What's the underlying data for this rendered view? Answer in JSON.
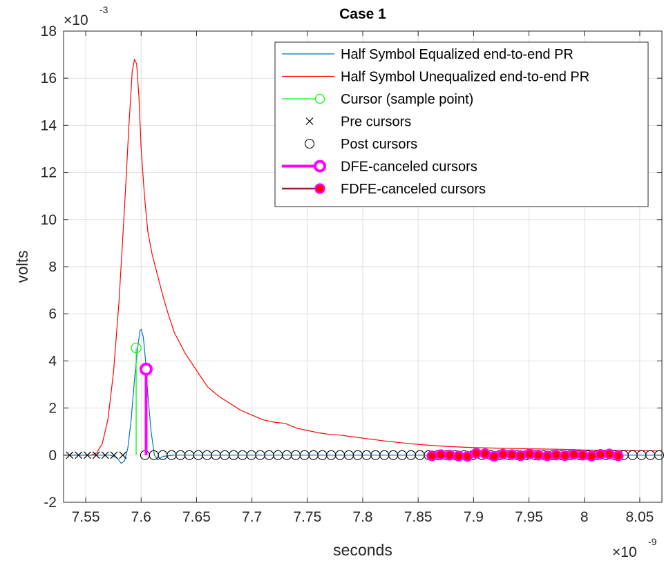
{
  "chart_data": {
    "type": "line",
    "title": "Case 1",
    "xlabel": "seconds",
    "ylabel": "volts",
    "x_multiplier": {
      "base": "×10",
      "exponent": "-9"
    },
    "y_multiplier": {
      "base": "×10",
      "exponent": "-3"
    },
    "xlim": [
      7.53,
      8.07
    ],
    "ylim": [
      -2,
      18
    ],
    "x_ticks": [
      "7.55",
      "7.6",
      "7.65",
      "7.7",
      "7.75",
      "7.8",
      "7.85",
      "7.9",
      "7.95",
      "8",
      "8.05"
    ],
    "x_tick_values": [
      7.55,
      7.6,
      7.65,
      7.7,
      7.75,
      7.8,
      7.85,
      7.9,
      7.95,
      8.0,
      8.05
    ],
    "y_ticks": [
      "-2",
      "0",
      "2",
      "4",
      "6",
      "8",
      "10",
      "12",
      "14",
      "16",
      "18"
    ],
    "y_tick_values": [
      -2,
      0,
      2,
      4,
      6,
      8,
      10,
      12,
      14,
      16,
      18
    ],
    "grid": true,
    "legend_position": "top-right",
    "colors": {
      "equalized": "#0072BD",
      "unequalized": "#FF0000",
      "cursor": "#00FF00",
      "pre": "#000000",
      "post": "#000000",
      "dfe": "#FF00FF",
      "fdfe_line": "#A2142F",
      "fdfe_fill": "#FF0000",
      "fdfe_edge": "#FF00FF"
    },
    "series": [
      {
        "name": "Half Symbol Equalized end-to-end PR",
        "kind": "line",
        "points": [
          [
            7.53,
            0
          ],
          [
            7.56,
            0
          ],
          [
            7.572,
            0
          ],
          [
            7.578,
            -0.1
          ],
          [
            7.582,
            -0.35
          ],
          [
            7.585,
            -0.25
          ],
          [
            7.588,
            0.3
          ],
          [
            7.591,
            1.5
          ],
          [
            7.594,
            3.2
          ],
          [
            7.597,
            4.6
          ],
          [
            7.599,
            5.3
          ],
          [
            7.6,
            5.35
          ],
          [
            7.602,
            5.0
          ],
          [
            7.604,
            4.0
          ],
          [
            7.606,
            2.6
          ],
          [
            7.609,
            1.0
          ],
          [
            7.612,
            0.0
          ],
          [
            7.615,
            -0.2
          ],
          [
            7.62,
            -0.05
          ],
          [
            7.63,
            0
          ],
          [
            7.85,
            0
          ],
          [
            8.07,
            0
          ]
        ]
      },
      {
        "name": "Half Symbol Unequalized end-to-end PR",
        "kind": "line",
        "points": [
          [
            7.53,
            0
          ],
          [
            7.555,
            0
          ],
          [
            7.56,
            0.1
          ],
          [
            7.565,
            0.5
          ],
          [
            7.57,
            1.5
          ],
          [
            7.575,
            3.5
          ],
          [
            7.58,
            6.5
          ],
          [
            7.585,
            10.5
          ],
          [
            7.589,
            14.0
          ],
          [
            7.592,
            16.3
          ],
          [
            7.594,
            16.8
          ],
          [
            7.596,
            16.6
          ],
          [
            7.598,
            15.2
          ],
          [
            7.6,
            13.0
          ],
          [
            7.603,
            11.0
          ],
          [
            7.606,
            9.5
          ],
          [
            7.61,
            8.5
          ],
          [
            7.615,
            7.6
          ],
          [
            7.62,
            6.7
          ],
          [
            7.625,
            5.9
          ],
          [
            7.63,
            5.2
          ],
          [
            7.64,
            4.3
          ],
          [
            7.65,
            3.6
          ],
          [
            7.66,
            2.9
          ],
          [
            7.67,
            2.5
          ],
          [
            7.68,
            2.2
          ],
          [
            7.69,
            1.9
          ],
          [
            7.7,
            1.7
          ],
          [
            7.71,
            1.5
          ],
          [
            7.72,
            1.4
          ],
          [
            7.73,
            1.35
          ],
          [
            7.74,
            1.15
          ],
          [
            7.75,
            1.05
          ],
          [
            7.76,
            0.95
          ],
          [
            7.77,
            0.88
          ],
          [
            7.78,
            0.85
          ],
          [
            7.8,
            0.72
          ],
          [
            7.82,
            0.6
          ],
          [
            7.84,
            0.5
          ],
          [
            7.86,
            0.42
          ],
          [
            7.88,
            0.36
          ],
          [
            7.9,
            0.32
          ],
          [
            7.92,
            0.3
          ],
          [
            7.95,
            0.27
          ],
          [
            7.98,
            0.25
          ],
          [
            8.0,
            0.22
          ],
          [
            8.03,
            0.2
          ],
          [
            8.07,
            0.18
          ]
        ]
      },
      {
        "name": "Cursor (sample point)",
        "kind": "stem",
        "points": [
          [
            7.5955,
            4.55
          ]
        ]
      },
      {
        "name": "Pre cursors",
        "kind": "marker-x",
        "points": [
          [
            7.5355,
            0
          ],
          [
            7.5435,
            0
          ],
          [
            7.5515,
            0
          ],
          [
            7.5595,
            0
          ],
          [
            7.5675,
            0
          ],
          [
            7.5755,
            0
          ],
          [
            7.5835,
            0
          ]
        ]
      },
      {
        "name": "Post cursors",
        "kind": "marker-o",
        "points": [
          [
            7.6035,
            0
          ],
          [
            7.6115,
            0
          ],
          [
            7.6195,
            0
          ],
          [
            7.6275,
            0
          ],
          [
            7.6355,
            0
          ],
          [
            7.6435,
            0
          ],
          [
            7.6515,
            0
          ],
          [
            7.6595,
            0
          ],
          [
            7.6675,
            0
          ],
          [
            7.6755,
            0
          ],
          [
            7.6835,
            0
          ],
          [
            7.6915,
            0
          ],
          [
            7.6995,
            0
          ],
          [
            7.7075,
            0
          ],
          [
            7.7155,
            0
          ],
          [
            7.7235,
            0
          ],
          [
            7.7315,
            0
          ],
          [
            7.7395,
            0
          ],
          [
            7.7475,
            0
          ],
          [
            7.7555,
            0
          ],
          [
            7.7635,
            0
          ],
          [
            7.7715,
            0
          ],
          [
            7.7795,
            0
          ],
          [
            7.7875,
            0
          ],
          [
            7.7955,
            0
          ],
          [
            7.8035,
            0
          ],
          [
            7.8115,
            0
          ],
          [
            7.8195,
            0
          ],
          [
            7.8275,
            0
          ],
          [
            7.8355,
            0
          ],
          [
            7.8435,
            0
          ],
          [
            7.8515,
            0
          ],
          [
            7.8595,
            0
          ],
          [
            7.8675,
            0
          ],
          [
            7.8755,
            0
          ],
          [
            7.8835,
            0
          ],
          [
            7.8915,
            0
          ],
          [
            7.8995,
            0
          ],
          [
            7.9075,
            0
          ],
          [
            7.9155,
            0
          ],
          [
            7.9235,
            0
          ],
          [
            7.9315,
            0
          ],
          [
            7.9395,
            0
          ],
          [
            7.9475,
            0
          ],
          [
            7.9555,
            0
          ],
          [
            7.9635,
            0
          ],
          [
            7.9715,
            0
          ],
          [
            7.9795,
            0
          ],
          [
            7.9875,
            0
          ],
          [
            7.9955,
            0
          ],
          [
            8.0035,
            0
          ],
          [
            8.0115,
            0
          ],
          [
            8.0195,
            0
          ],
          [
            8.0275,
            0
          ],
          [
            8.0355,
            0
          ],
          [
            8.0435,
            0
          ],
          [
            8.0515,
            0
          ],
          [
            8.0595,
            0
          ],
          [
            8.0675,
            0
          ]
        ]
      },
      {
        "name": "DFE-canceled cursors",
        "kind": "stem",
        "points": [
          [
            7.6045,
            3.65
          ]
        ]
      },
      {
        "name": "FDFE-canceled cursors",
        "kind": "filled-stem",
        "points": [
          [
            7.8625,
            -0.03
          ],
          [
            7.8705,
            0.02
          ],
          [
            7.8785,
            0.0
          ],
          [
            7.8865,
            -0.04
          ],
          [
            7.8945,
            -0.05
          ],
          [
            7.9025,
            0.08
          ],
          [
            7.9105,
            0.06
          ],
          [
            7.9185,
            -0.05
          ],
          [
            7.9265,
            0.04
          ],
          [
            7.9345,
            0.02
          ],
          [
            7.9425,
            -0.02
          ],
          [
            7.9505,
            0.05
          ],
          [
            7.9585,
            0.0
          ],
          [
            7.9665,
            -0.03
          ],
          [
            7.9745,
            0.01
          ],
          [
            7.9825,
            -0.02
          ],
          [
            7.9905,
            0.03
          ],
          [
            7.9985,
            0.0
          ],
          [
            8.0065,
            -0.04
          ],
          [
            8.0145,
            0.03
          ],
          [
            8.0225,
            0.05
          ],
          [
            8.0305,
            -0.03
          ]
        ]
      }
    ]
  }
}
